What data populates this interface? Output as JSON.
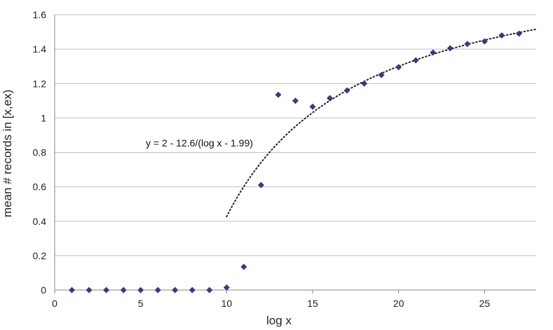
{
  "chart_data": {
    "type": "scatter",
    "title": "",
    "xlabel": "log x",
    "ylabel": "mean # records in [x,ex)",
    "xlim": [
      0,
      28
    ],
    "ylim": [
      0,
      1.6
    ],
    "x_ticks": [
      0,
      5,
      10,
      15,
      20,
      25
    ],
    "y_ticks": [
      0,
      0.2,
      0.4,
      0.6,
      0.8,
      1,
      1.2,
      1.4,
      1.6
    ],
    "y_tick_labels": [
      "0",
      "0.2",
      "0.4",
      "0.6",
      "0.8",
      "1",
      "1.2",
      "1.4",
      "1.6"
    ],
    "grid": "horizontal",
    "legend": "none",
    "marker_color": "#3b3b78",
    "points": {
      "x": [
        1,
        2,
        3,
        4,
        5,
        6,
        7,
        8,
        9,
        10,
        11,
        12,
        13,
        14,
        15,
        16,
        17,
        18,
        19,
        20,
        21,
        22,
        23,
        24,
        25,
        26,
        27
      ],
      "y": [
        0,
        0,
        0,
        0,
        0,
        0,
        0,
        0,
        0,
        0.015,
        0.135,
        0.61,
        1.135,
        1.1,
        1.065,
        1.115,
        1.16,
        1.2,
        1.25,
        1.295,
        1.335,
        1.38,
        1.405,
        1.43,
        1.445,
        1.48,
        1.49
      ]
    },
    "fit_curve": {
      "style": "dotted",
      "x_start": 10,
      "x_end": 28,
      "label": "y = 2 - 12.6/(log x - 1.99)"
    }
  }
}
